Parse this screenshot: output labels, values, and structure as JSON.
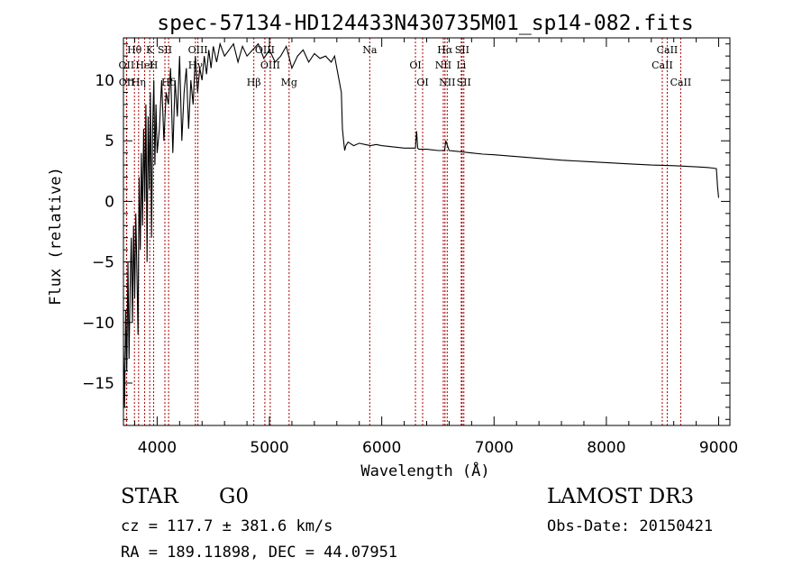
{
  "chart_data": {
    "type": "line",
    "title": "spec-57134-HD124433N430735M01_sp14-082.fits",
    "xlabel": "Wavelength (Å)",
    "ylabel": "Flux (relative)",
    "xlim": [
      3700,
      9100
    ],
    "ylim": [
      -18.5,
      13.5
    ],
    "xticks": [
      4000,
      5000,
      6000,
      7000,
      8000,
      9000
    ],
    "xtick_labels": [
      "4000",
      "5000",
      "6000",
      "7000",
      "8000",
      "9000"
    ],
    "yticks": [
      -15,
      -10,
      -5,
      0,
      5,
      10
    ],
    "ytick_labels": [
      "−15",
      "−10",
      "−5",
      "0",
      "5",
      "10"
    ],
    "series": [
      {
        "name": "flux",
        "x": [
          3700,
          3710,
          3720,
          3730,
          3740,
          3750,
          3760,
          3770,
          3780,
          3790,
          3800,
          3810,
          3820,
          3830,
          3840,
          3850,
          3860,
          3870,
          3880,
          3890,
          3900,
          3910,
          3920,
          3930,
          3940,
          3950,
          3960,
          3970,
          3980,
          3990,
          4000,
          4020,
          4040,
          4060,
          4080,
          4100,
          4120,
          4140,
          4160,
          4180,
          4200,
          4220,
          4240,
          4260,
          4280,
          4300,
          4320,
          4340,
          4360,
          4380,
          4400,
          4420,
          4440,
          4460,
          4480,
          4500,
          4530,
          4560,
          4600,
          4640,
          4680,
          4720,
          4760,
          4800,
          4850,
          4900,
          4950,
          5000,
          5050,
          5100,
          5150,
          5200,
          5250,
          5300,
          5350,
          5400,
          5450,
          5500,
          5550,
          5580,
          5600,
          5620,
          5640,
          5650,
          5660,
          5670,
          5680,
          5700,
          5750,
          5800,
          5850,
          5900,
          5950,
          6000,
          6100,
          6200,
          6300,
          6310,
          6320,
          6330,
          6400,
          6500,
          6560,
          6570,
          6600,
          6700,
          6800,
          6900,
          7000,
          7200,
          7400,
          7600,
          7800,
          8000,
          8200,
          8400,
          8600,
          8800,
          8900,
          8950,
          8980,
          8990,
          9000
        ],
        "y": [
          -12,
          -17,
          -9,
          -14,
          -5,
          -13,
          -7,
          -3,
          -10,
          -2,
          -8,
          -1,
          -6,
          -11,
          2,
          -4,
          4,
          -2,
          6,
          0,
          8,
          -5,
          7,
          1,
          9,
          -3,
          6,
          10,
          3,
          8,
          4,
          6,
          10,
          5,
          9,
          8,
          11,
          4,
          10,
          7,
          12,
          5,
          9,
          11,
          6,
          10,
          8,
          12,
          9,
          11,
          10,
          12,
          10.5,
          12.5,
          11,
          12.8,
          11.5,
          13,
          12,
          12.5,
          13,
          11.5,
          12.8,
          12,
          12.5,
          13,
          11.8,
          12.5,
          11.5,
          12,
          12.8,
          11,
          12,
          12.5,
          11.5,
          12.2,
          11.8,
          12,
          11.5,
          12,
          11,
          10,
          9,
          6,
          5,
          4.2,
          4.6,
          4.9,
          4.6,
          4.8,
          4.7,
          4.6,
          4.7,
          4.6,
          4.5,
          4.4,
          4.4,
          5.8,
          4.4,
          4.3,
          4.3,
          4.2,
          4.2,
          5.0,
          4.2,
          4.1,
          4.0,
          3.9,
          3.85,
          3.7,
          3.55,
          3.4,
          3.3,
          3.2,
          3.1,
          3.0,
          2.95,
          2.85,
          2.8,
          2.75,
          2.7,
          1.2,
          0.3
        ]
      }
    ],
    "annotations": [
      {
        "label": "Hθ",
        "wavelength": 3798
      },
      {
        "label": "OII",
        "wavelength": 3727
      },
      {
        "label": "OII",
        "wavelength": 3729
      },
      {
        "label": "K",
        "wavelength": 3934
      },
      {
        "label": "HeI",
        "wavelength": 3889
      },
      {
        "label": "Hη",
        "wavelength": 3835
      },
      {
        "label": "SII",
        "wavelength": 4069
      },
      {
        "label": "H",
        "wavelength": 3969
      },
      {
        "label": "Hδ",
        "wavelength": 4102
      },
      {
        "label": "OIII",
        "wavelength": 4363
      },
      {
        "label": "Hγ",
        "wavelength": 4341
      },
      {
        "label": "Hβ",
        "wavelength": 4861
      },
      {
        "label": "OIII",
        "wavelength": 4959
      },
      {
        "label": "OIII",
        "wavelength": 5007
      },
      {
        "label": "Mg",
        "wavelength": 5175
      },
      {
        "label": "Na",
        "wavelength": 5893
      },
      {
        "label": "OI",
        "wavelength": 6300
      },
      {
        "label": "OI",
        "wavelength": 6364
      },
      {
        "label": "Hα",
        "wavelength": 6563
      },
      {
        "label": "NII",
        "wavelength": 6548
      },
      {
        "label": "NII",
        "wavelength": 6583
      },
      {
        "label": "SII",
        "wavelength": 6716
      },
      {
        "label": "Li",
        "wavelength": 6708
      },
      {
        "label": "SII",
        "wavelength": 6731
      },
      {
        "label": "CaII",
        "wavelength": 8542
      },
      {
        "label": "CaII",
        "wavelength": 8498
      },
      {
        "label": "CaII",
        "wavelength": 8662
      }
    ]
  },
  "info": {
    "object_class": "STAR",
    "subclass": "G0",
    "survey": "LAMOST DR3",
    "cz": "cz = 117.7 ± 381.6 km/s",
    "obs_date": "Obs-Date: 20150421",
    "radec": "RA = 189.11898, DEC =  44.07951"
  },
  "colors": {
    "line": "#000000",
    "marker": "#aa0000",
    "background": "#ffffff"
  }
}
